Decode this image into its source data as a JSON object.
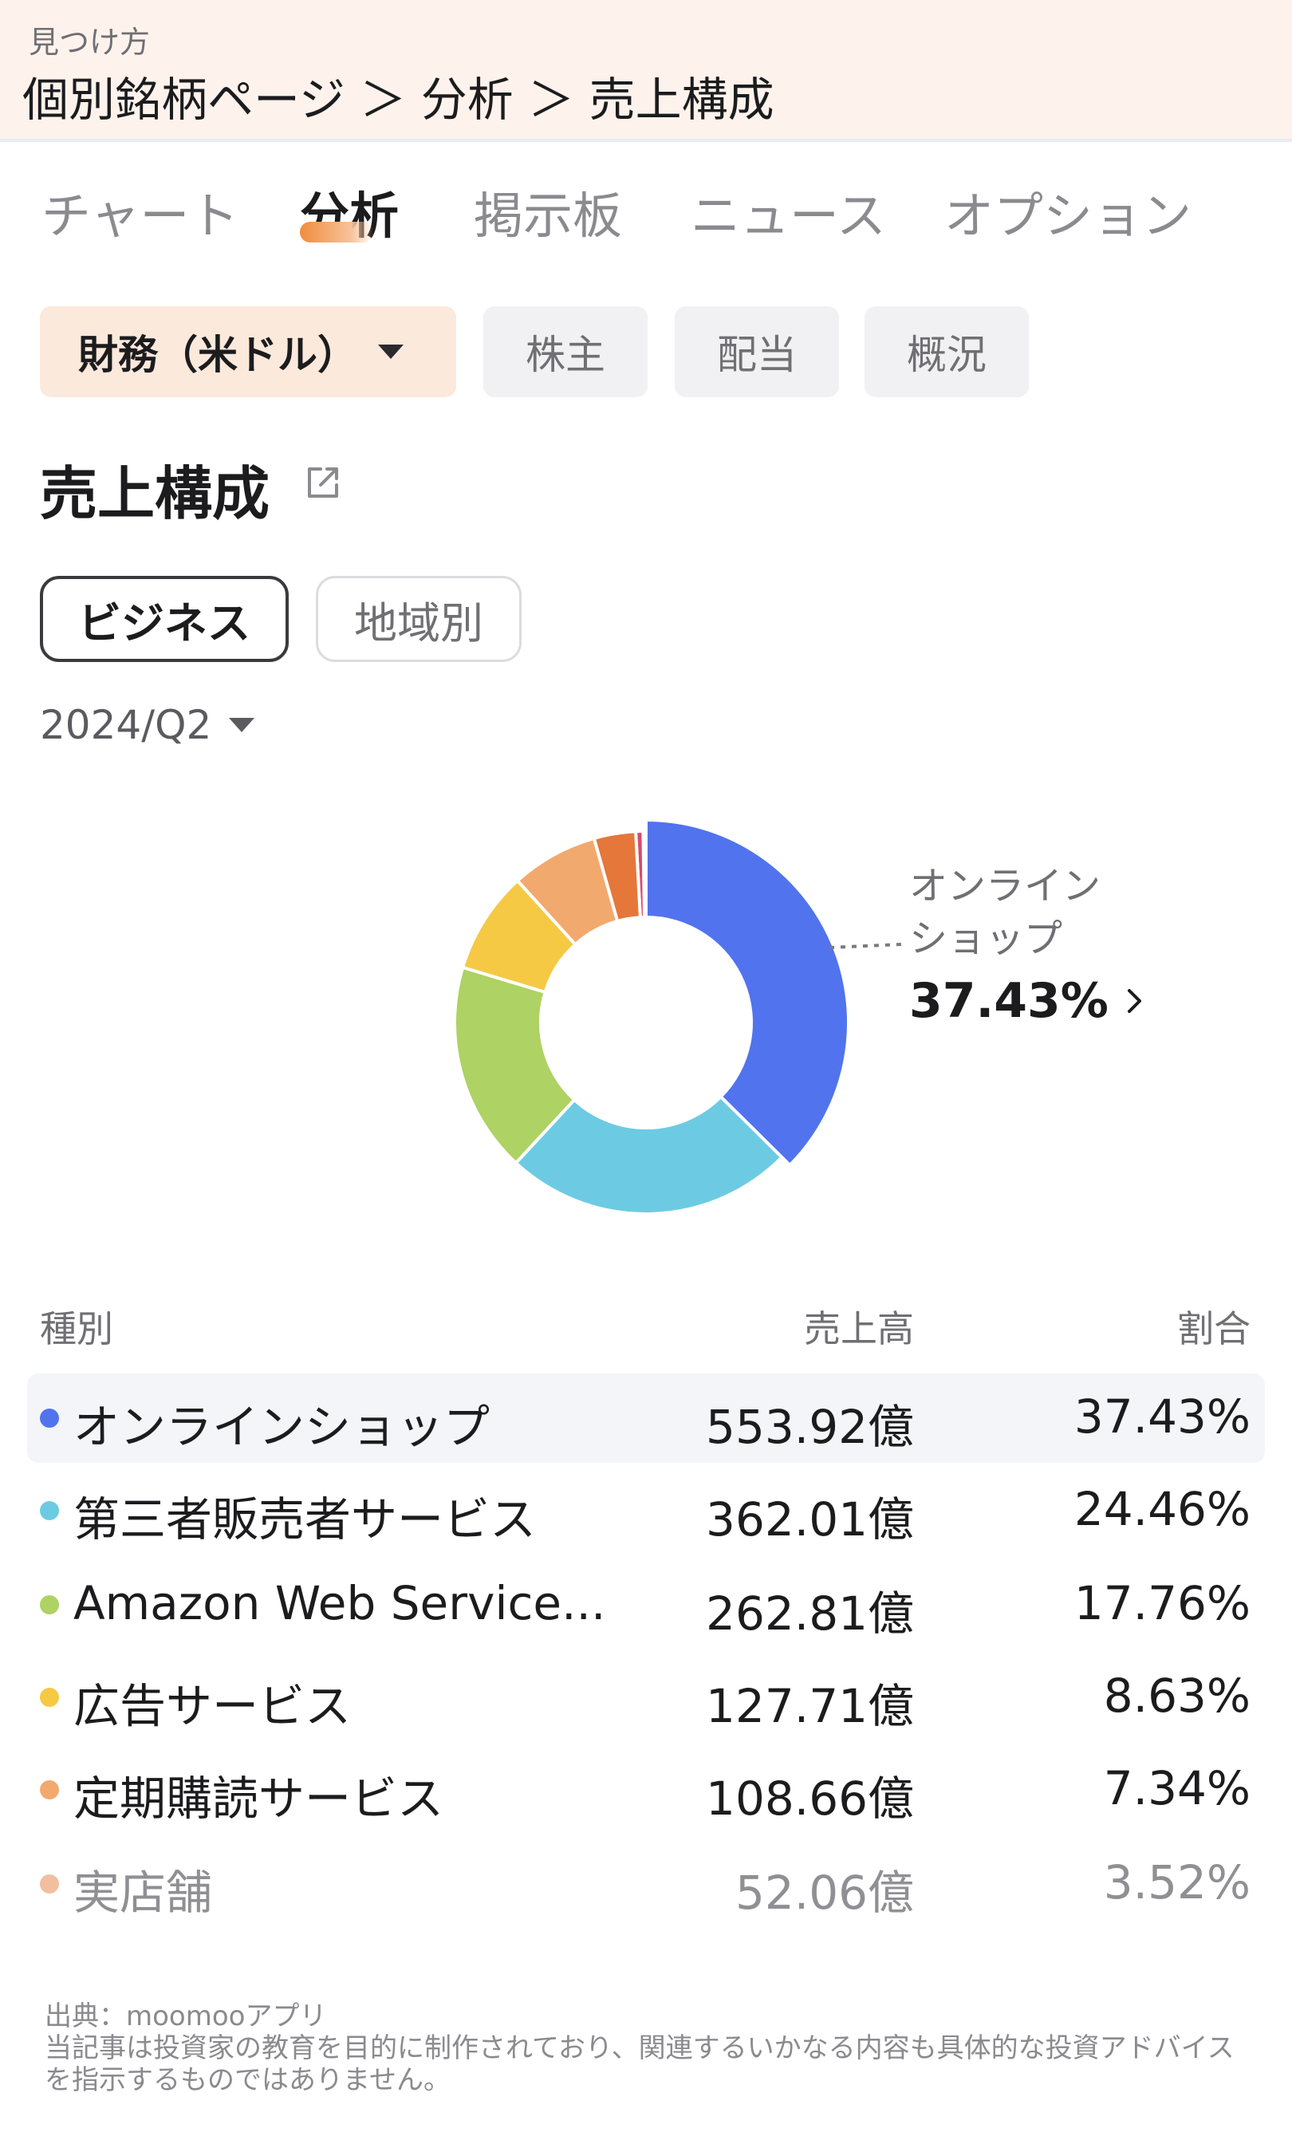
{
  "header": {
    "hint": "見つけ方",
    "breadcrumb": "個別銘柄ページ ＞ 分析 ＞ 売上構成"
  },
  "tabs": [
    {
      "label": "チャート",
      "active": false
    },
    {
      "label": "分析",
      "active": true
    },
    {
      "label": "掲示板",
      "active": false
    },
    {
      "label": "ニュース",
      "active": false
    },
    {
      "label": "オプション",
      "active": false
    }
  ],
  "filters": {
    "financial": "財務（米ドル）",
    "shareholders": "株主",
    "dividend": "配当",
    "overview": "概況"
  },
  "section": {
    "title": "売上構成",
    "share_icon": "share-icon"
  },
  "segments": {
    "business": "ビジネス",
    "region": "地域別"
  },
  "period": "2024/Q2",
  "callout": {
    "label_line1": "オンライン",
    "label_line2": "ショップ",
    "value": "37.43%"
  },
  "table": {
    "headers": {
      "name": "種別",
      "revenue": "売上高",
      "share": "割合"
    },
    "rows": [
      {
        "name": "オンラインショップ",
        "revenue": "553.92億",
        "share": "37.43%",
        "color": "#5173ee"
      },
      {
        "name": "第三者販売者サービス",
        "revenue": "362.01億",
        "share": "24.46%",
        "color": "#6ccbe2"
      },
      {
        "name": "Amazon Web Service...",
        "revenue": "262.81億",
        "share": "17.76%",
        "color": "#aed263"
      },
      {
        "name": "広告サービス",
        "revenue": "127.71億",
        "share": "8.63%",
        "color": "#f6c944"
      },
      {
        "name": "定期購読サービス",
        "revenue": "108.66億",
        "share": "7.34%",
        "color": "#f2a96e"
      },
      {
        "name": "実店舗",
        "revenue": "52.06億",
        "share": "3.52%",
        "color": "#f1bfa0"
      }
    ]
  },
  "chart_data": {
    "type": "pie",
    "categories": [
      "オンラインショップ",
      "第三者販売者サービス",
      "Amazon Web Service...",
      "広告サービス",
      "定期購読サービス",
      "実店舗",
      "",
      ""
    ],
    "values": [
      37.43,
      24.46,
      17.76,
      8.63,
      7.34,
      3.52,
      0.62,
      0.24
    ],
    "colors": [
      "#5173ee",
      "#6ccbe2",
      "#aed263",
      "#f6c944",
      "#f2a96e",
      "#e5773a",
      "#d94a6a",
      "#e8a0c0"
    ],
    "donut": true,
    "highlighted_index": 0
  },
  "footer": {
    "source": "出典：moomooアプリ",
    "disclaimer": "当記事は投資家の教育を目的に制作されており、関連するいかなる内容も具体的な投資アドバイスを指示するものではありません。"
  }
}
